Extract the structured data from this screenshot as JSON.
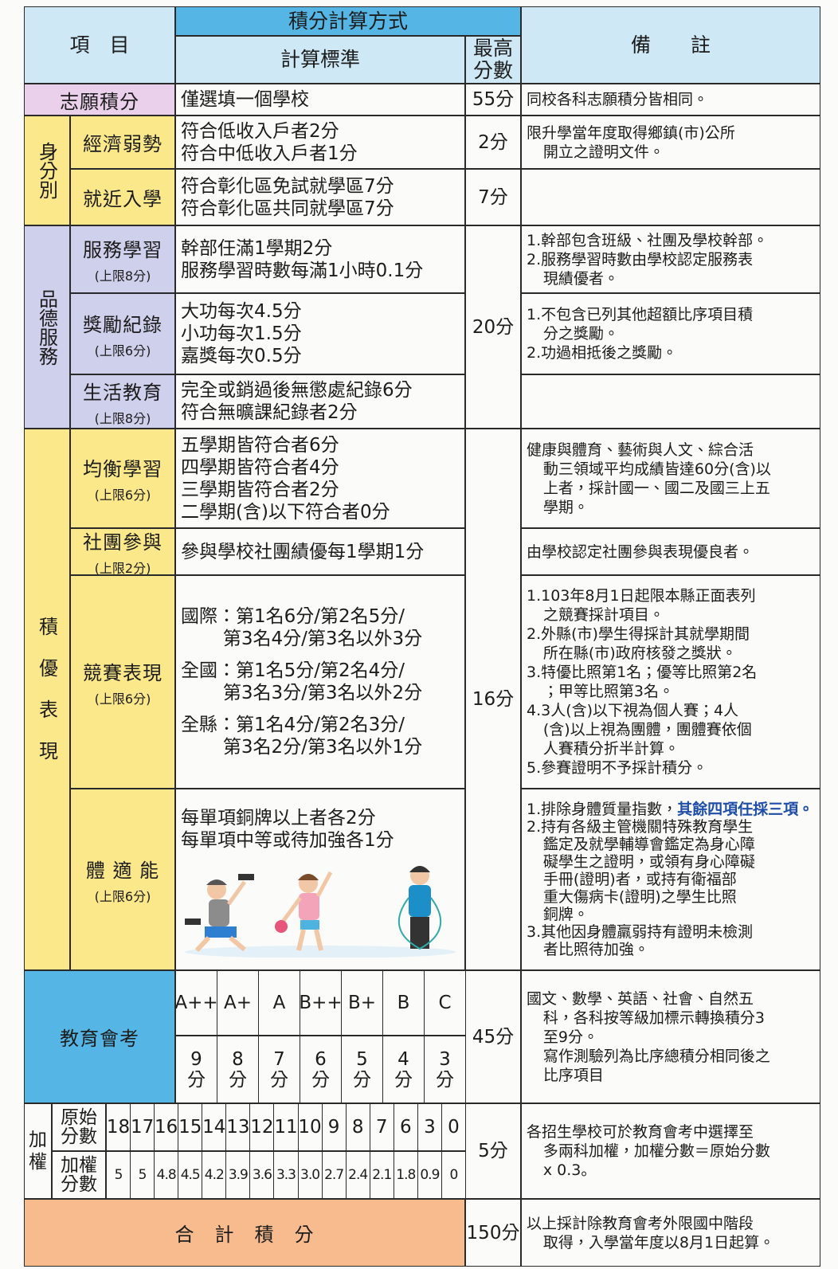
{
  "header": {
    "item": "項　目",
    "group": "積分計算方式",
    "standard": "計算標準",
    "max": "最高\n分數",
    "note": "備　　註"
  },
  "wish": {
    "label": "志願積分",
    "standard": "僅選填一個學校",
    "max": "55分",
    "note": "同校各科志願積分皆相同。"
  },
  "identity": {
    "label": "身分別",
    "rows": [
      {
        "label": "經濟弱勢",
        "standard": "符合低收入戶者2分\n符合中低收入戶者1分",
        "max": "2分",
        "note": "限升學當年度取得鄉鎮(市)公所\n開立之證明文件。"
      },
      {
        "label": "就近入學",
        "standard": "符合彰化區免試就學區7分\n符合彰化區共同就學區7分",
        "max": "7分"
      }
    ]
  },
  "virtue": {
    "label": "品德服務",
    "max": "20分",
    "rows": [
      {
        "label": "服務學習",
        "limit": "(上限8分)",
        "standard": "幹部任滿1學期2分\n服務學習時數每滿1小時0.1分",
        "notes": [
          "1.幹部包含班級、社團及學校幹部。",
          "2.服務學習時數由學校認定服務表\n現績優者。"
        ]
      },
      {
        "label": "獎勵紀錄",
        "limit": "(上限6分)",
        "standard": "大功每次4.5分\n小功每次1.5分\n嘉獎每次0.5分",
        "notes": [
          "1.不包含已列其他超額比序項目積\n分之獎勵。",
          "2.功過相抵後之獎勵。"
        ]
      },
      {
        "label": "生活教育",
        "limit": "(上限8分)",
        "standard": "完全或銷過後無懲處紀錄6分\n符合無曠課紀錄者2分"
      }
    ]
  },
  "merit": {
    "label": "積優表現",
    "max": "16分",
    "rows": [
      {
        "label": "均衡學習",
        "limit": "(上限6分)",
        "standard": "五學期皆符合者6分\n四學期皆符合者4分\n三學期皆符合者2分\n二學期(含)以下符合者0分",
        "notes": [
          "健康與體育、藝術與人文、綜合活\n動三領域平均成績皆達60分(含)以\n上者，採計國一、國二及國三上五\n學期。"
        ]
      },
      {
        "label": "社團參與",
        "limit": "(上限2分)",
        "standard": "參與學校社團績優每1學期1分",
        "notes": [
          "由學校認定社團參與表現優良者。"
        ]
      },
      {
        "label": "競賽表現",
        "limit": "(上限6分)",
        "standards": [
          "國際：第1名6分/第2名5分/\n第3名4分/第3名以外3分",
          "全國：第1名5分/第2名4分/\n第3名3分/第3名以外2分",
          "全縣：第1名4分/第2名3分/\n第3名2分/第3名以外1分"
        ],
        "notes": [
          "1.103年8月1日起限本縣正面表列\n之競賽採計項目。",
          "2.外縣(市)學生得採計其就學期間\n所在縣(市)政府核發之獎狀。",
          "3.特優比照第1名；優等比照第2名\n；甲等比照第3名。",
          "4.3人(含)以下視為個人賽；4人\n(含)以上視為團體，團體賽依個\n人賽積分折半計算。",
          "5.參賽證明不予採計積分。"
        ]
      },
      {
        "label": "體 適 能",
        "limit": "(上限6分)",
        "standard": "每單項銅牌以上者各2分\n每單項中等或待加強各1分",
        "note_first": {
          "text": "1.排除身體質量指數，",
          "emphasis": "其餘四項任採三項。"
        },
        "notes": [
          "2.持有各級主管機關特殊教育學生\n鑑定及就學輔導會鑑定為身心障\n礙學生之證明，或領有身心障礙\n手冊(證明)者，或持有衛福部\n重大傷病卡(證明)之學生比照\n銅牌。",
          "3.其他因身體羸弱持有證明未檢測\n者比照待加強。"
        ]
      }
    ]
  },
  "exam": {
    "label": "教育會考",
    "grades": [
      "A++",
      "A+",
      "A",
      "B++",
      "B+",
      "B",
      "C"
    ],
    "points": [
      "9分",
      "8分",
      "7分",
      "6分",
      "5分",
      "4分",
      "3分"
    ],
    "max": "45分",
    "note": "國文、數學、英語、社會、自然五\n科，各科按等級加標示轉換積分3\n至9分。\n寫作測驗列為比序總積分相同後之\n比序項目"
  },
  "weight": {
    "label": "加\n權",
    "raw_label": "原始\n分數",
    "raw": [
      "18",
      "17",
      "16",
      "15",
      "14",
      "13",
      "12",
      "11",
      "10",
      "9",
      "8",
      "7",
      "6",
      "3",
      "0"
    ],
    "weighted_label": "加權\n分數",
    "weighted": [
      "5",
      "5",
      "4.8",
      "4.5",
      "4.2",
      "3.9",
      "3.6",
      "3.3",
      "3.0",
      "2.7",
      "2.4",
      "2.1",
      "1.8",
      "0.9",
      "0"
    ],
    "max": "5分",
    "note": "各招生學校可於教育會考中選擇至\n多兩科加權，加權分數＝原始分數\nx 0.3。"
  },
  "total": {
    "label": "合　計　積　分",
    "max": "150分",
    "note": "以上採計除教育會考外限國中階段\n取得，入學當年度以8月1日起算。"
  }
}
